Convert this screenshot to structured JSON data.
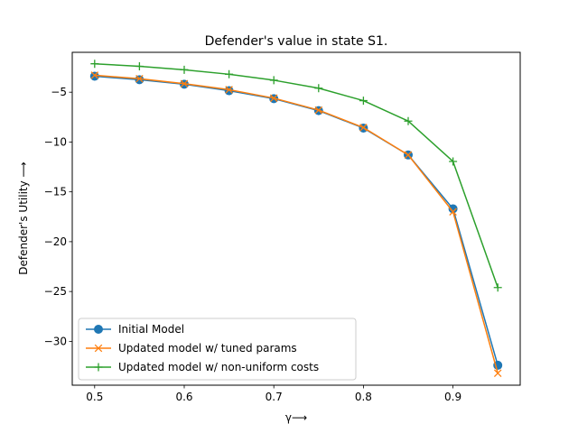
{
  "chart_data": {
    "type": "line",
    "title": "Defender's value in state S1.",
    "xlabel": "γ⟶",
    "ylabel": "Defender's Utility ⟶",
    "xlim": [
      0.475,
      0.975
    ],
    "ylim": [
      -34.4,
      -1.0
    ],
    "xticks": [
      0.5,
      0.6,
      0.7,
      0.8,
      0.9
    ],
    "xtick_labels": [
      "0.5",
      "0.6",
      "0.7",
      "0.8",
      "0.9"
    ],
    "yticks": [
      -5,
      -10,
      -15,
      -20,
      -25,
      -30
    ],
    "ytick_labels": [
      "−5",
      "−10",
      "−15",
      "−20",
      "−25",
      "−30"
    ],
    "grid": false,
    "legend_position": "lower-left",
    "x": [
      0.5,
      0.55,
      0.6,
      0.65,
      0.7,
      0.75,
      0.8,
      0.85,
      0.9,
      0.95
    ],
    "series": [
      {
        "name": "Initial Model",
        "color": "#1f77b4",
        "marker": "circle",
        "values": [
          -3.4,
          -3.75,
          -4.2,
          -4.85,
          -5.65,
          -6.85,
          -8.6,
          -11.3,
          -16.7,
          -32.4
        ]
      },
      {
        "name": "Updated model w/ tuned params",
        "color": "#ff7f0e",
        "marker": "x",
        "values": [
          -3.3,
          -3.65,
          -4.15,
          -4.75,
          -5.6,
          -6.8,
          -8.55,
          -11.3,
          -17.0,
          -33.2
        ]
      },
      {
        "name": "Updated model w/ non-uniform costs",
        "color": "#2ca02c",
        "marker": "plus",
        "values": [
          -2.15,
          -2.4,
          -2.75,
          -3.2,
          -3.8,
          -4.6,
          -5.85,
          -7.9,
          -11.95,
          -24.6
        ]
      }
    ]
  }
}
